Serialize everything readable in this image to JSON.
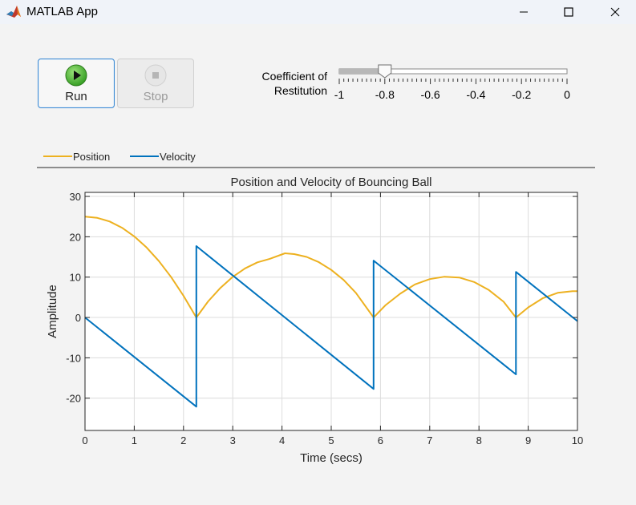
{
  "window": {
    "title": "MATLAB App"
  },
  "controls": {
    "run_label": "Run",
    "stop_label": "Stop",
    "slider_label_line1": "Coefficient of",
    "slider_label_line2": "Restitution",
    "slider_value": -0.8,
    "slider_min": -1,
    "slider_max": 0,
    "slider_ticks": [
      "-1",
      "-0.8",
      "-0.6",
      "-0.4",
      "-0.2",
      "0"
    ]
  },
  "colors": {
    "position": "#EDB120",
    "velocity": "#0072BD",
    "accent": "#3d8bd4"
  },
  "icons": {
    "app": "matlab-logo-icon",
    "run": "play-icon",
    "stop": "stop-icon"
  },
  "chart_data": {
    "type": "line",
    "title": "Position and Velocity of Bouncing Ball",
    "xlabel": "Time (secs)",
    "ylabel": "Amplitude",
    "xlim": [
      0,
      10
    ],
    "ylim": [
      -28,
      31
    ],
    "xticks": [
      0,
      1,
      2,
      3,
      4,
      5,
      6,
      7,
      8,
      9,
      10
    ],
    "yticks": [
      -20,
      -10,
      0,
      10,
      20,
      30
    ],
    "grid": true,
    "legend_placement": "top-left, outside, horizontal",
    "series": [
      {
        "name": "Position",
        "points": [
          [
            0,
            25
          ],
          [
            0.25,
            24.69
          ],
          [
            0.5,
            23.78
          ],
          [
            0.75,
            22.24
          ],
          [
            1.0,
            20.1
          ],
          [
            1.25,
            17.34
          ],
          [
            1.5,
            13.98
          ],
          [
            1.75,
            10.0
          ],
          [
            2.0,
            5.38
          ],
          [
            2.26,
            0
          ],
          [
            2.5,
            3.98
          ],
          [
            2.75,
            7.34
          ],
          [
            3.0,
            10.06
          ],
          [
            3.25,
            12.16
          ],
          [
            3.5,
            13.65
          ],
          [
            3.75,
            14.53
          ],
          [
            4.06,
            15.9
          ],
          [
            4.25,
            15.71
          ],
          [
            4.5,
            15.0
          ],
          [
            4.75,
            13.7
          ],
          [
            5.0,
            11.8
          ],
          [
            5.25,
            9.3
          ],
          [
            5.5,
            6.1
          ],
          [
            5.86,
            0
          ],
          [
            6.1,
            3.0
          ],
          [
            6.4,
            5.9
          ],
          [
            6.7,
            8.2
          ],
          [
            7.0,
            9.5
          ],
          [
            7.3,
            10.1
          ],
          [
            7.6,
            9.9
          ],
          [
            7.9,
            8.8
          ],
          [
            8.2,
            6.8
          ],
          [
            8.5,
            3.9
          ],
          [
            8.75,
            0
          ],
          [
            9.0,
            2.5
          ],
          [
            9.3,
            4.8
          ],
          [
            9.6,
            6.1
          ],
          [
            9.9,
            6.5
          ],
          [
            10.0,
            6.5
          ]
        ]
      },
      {
        "name": "Velocity",
        "points": [
          [
            0,
            0
          ],
          [
            2.26,
            -22.1
          ],
          [
            2.26,
            17.7
          ],
          [
            5.86,
            -17.7
          ],
          [
            5.86,
            14.1
          ],
          [
            8.75,
            -14.1
          ],
          [
            8.75,
            11.3
          ],
          [
            10.0,
            -0.9
          ]
        ]
      }
    ]
  }
}
